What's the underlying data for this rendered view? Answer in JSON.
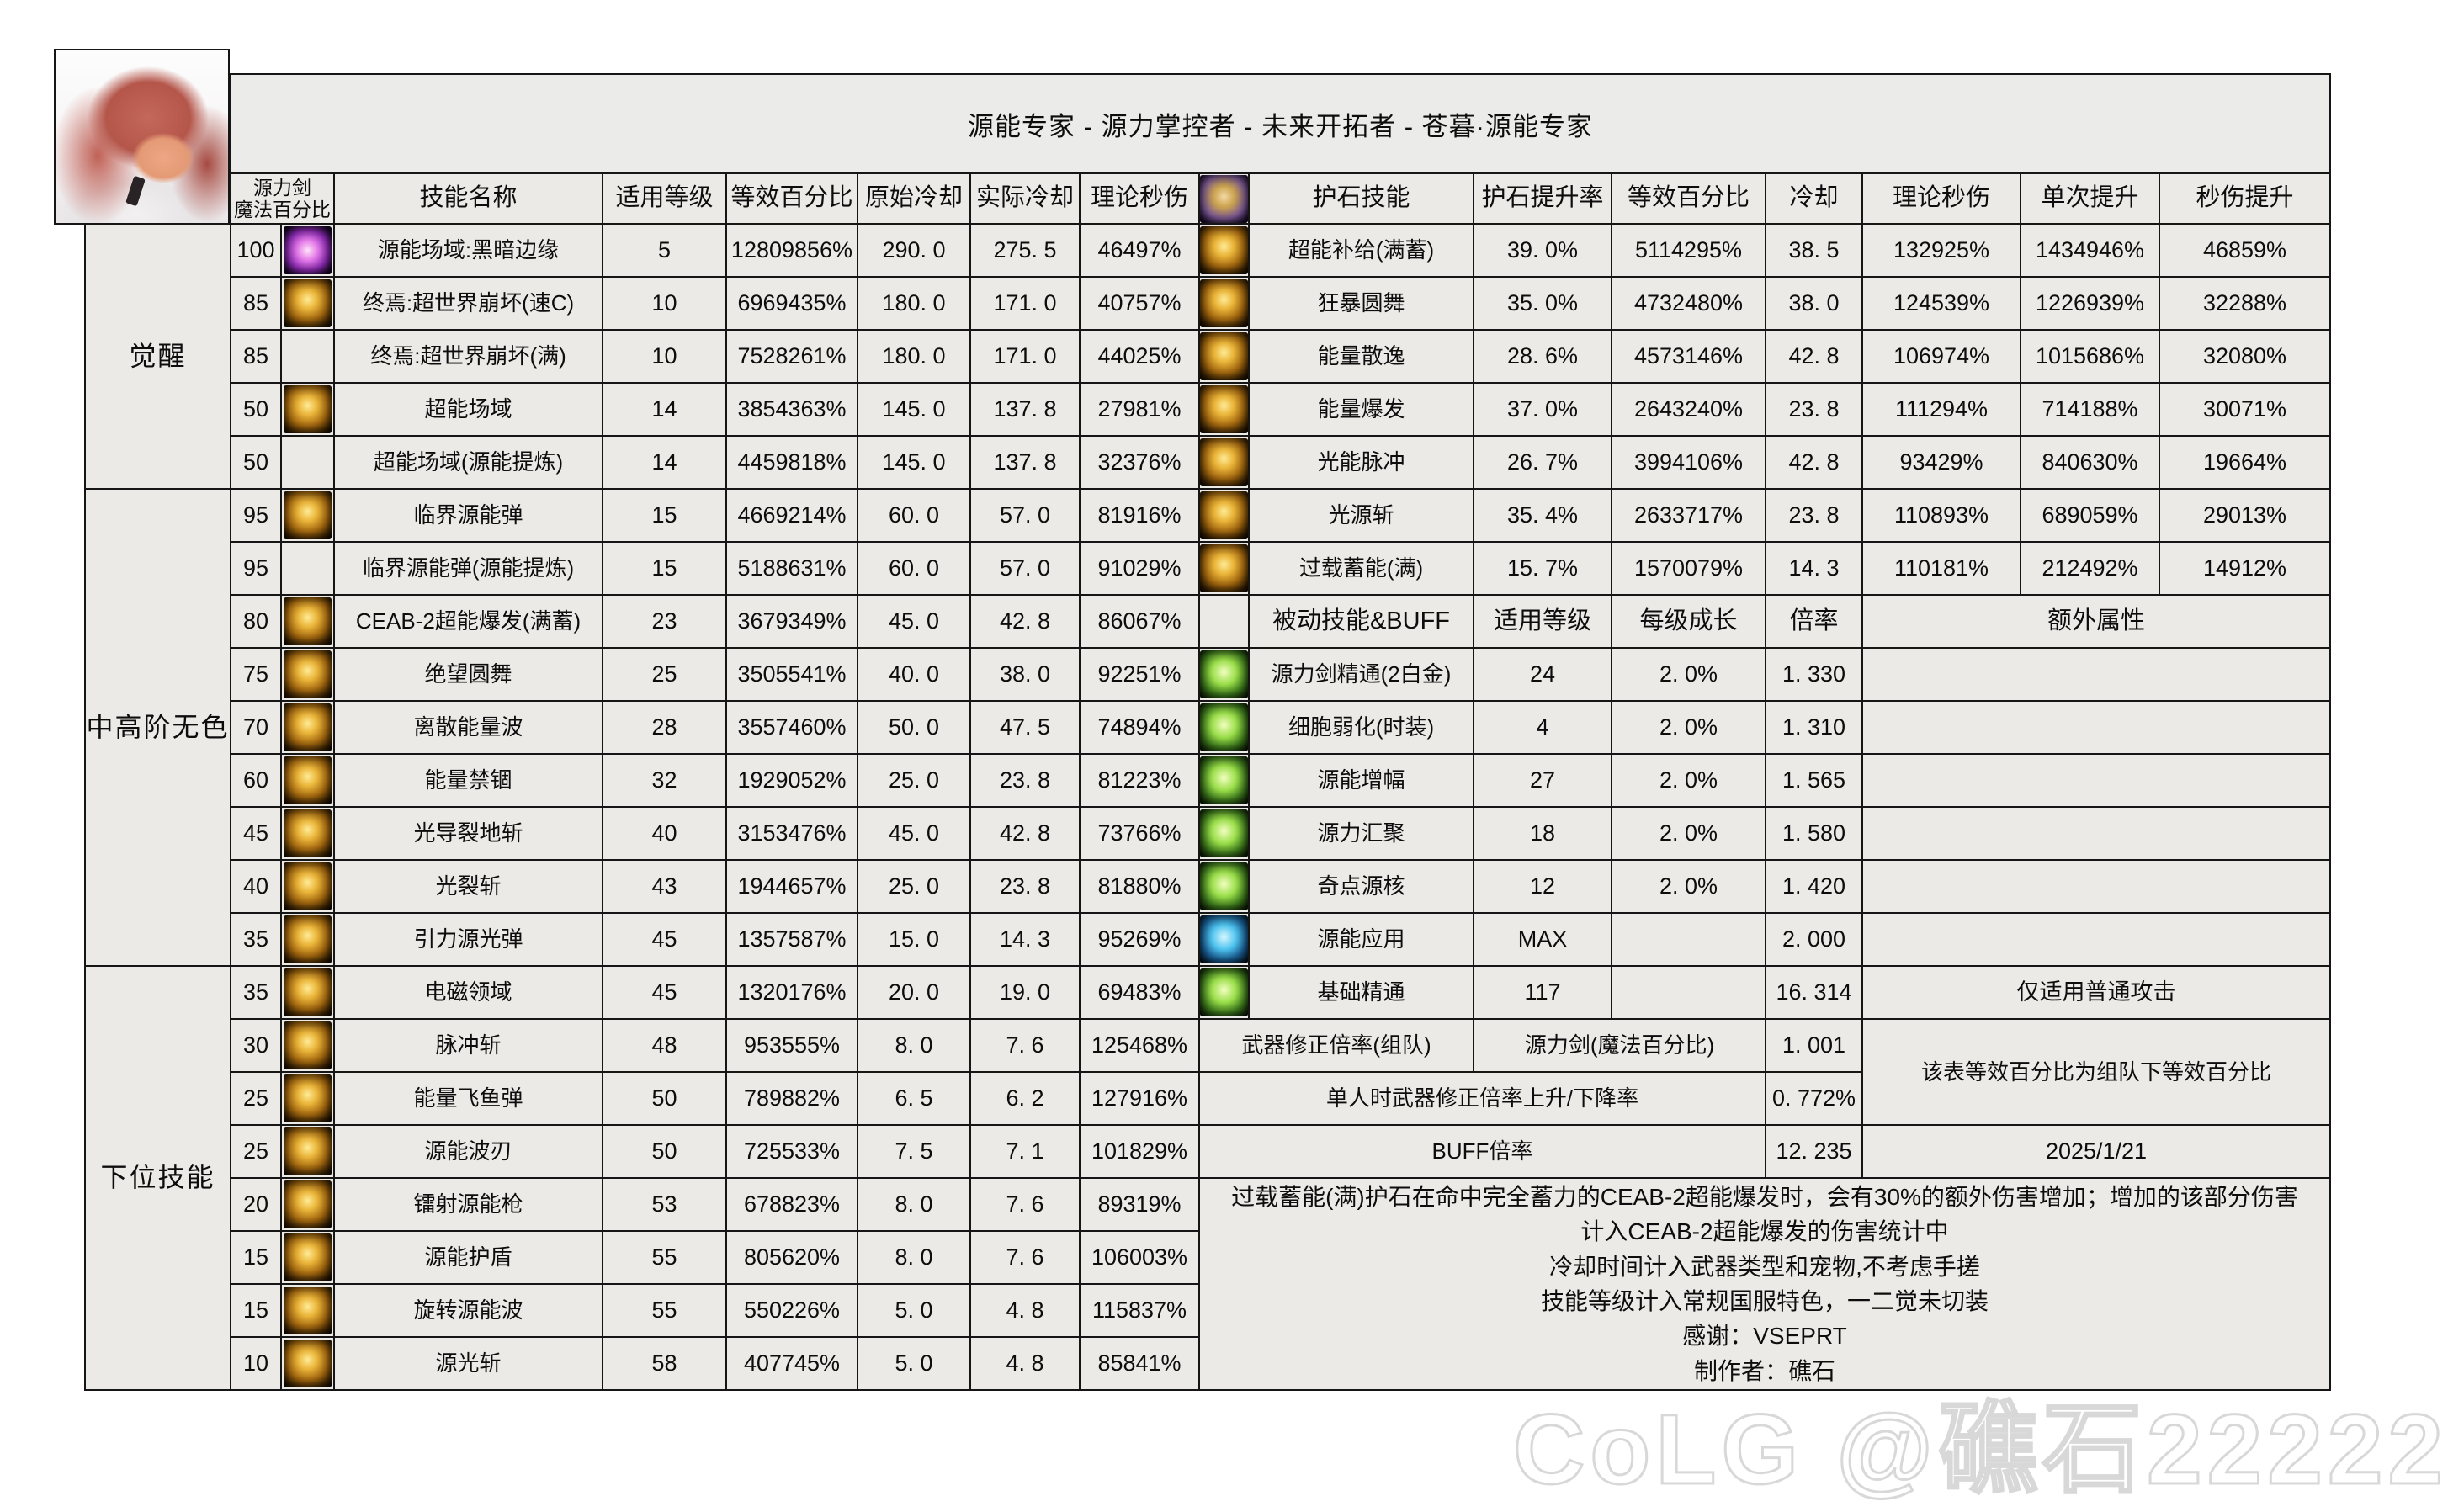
{
  "title": "源能专家 - 源力掌控者 - 未来开拓者 - 苍暮·源能专家",
  "watermark": "CoLG @礁石22222",
  "left_table": {
    "headers": {
      "pct1": "源力剑",
      "pct2": "魔法百分比",
      "name": "技能名称",
      "level": "适用等级",
      "equiv": "等效百分比",
      "cd0": "原始冷却",
      "cd1": "实际冷却",
      "dps": "理论秒伤"
    },
    "groups": [
      {
        "label": "觉醒",
        "span": 5
      },
      {
        "label": "中高阶无色",
        "span": 9
      },
      {
        "label": "下位技能",
        "span": 8
      }
    ],
    "rows": [
      {
        "pct": "100",
        "icon": "purple",
        "name": "源能场域:黑暗边缘",
        "level": "5",
        "equiv": "12809856%",
        "cd0": "290. 0",
        "cd1": "275. 5",
        "dps": "46497%"
      },
      {
        "pct": "85",
        "icon": "gold",
        "name": "终焉:超世界崩坏(速C)",
        "level": "10",
        "equiv": "6969435%",
        "cd0": "180. 0",
        "cd1": "171. 0",
        "dps": "40757%"
      },
      {
        "pct": "85",
        "icon": "none",
        "name": "终焉:超世界崩坏(满)",
        "level": "10",
        "equiv": "7528261%",
        "cd0": "180. 0",
        "cd1": "171. 0",
        "dps": "44025%"
      },
      {
        "pct": "50",
        "icon": "gold",
        "name": "超能场域",
        "level": "14",
        "equiv": "3854363%",
        "cd0": "145. 0",
        "cd1": "137. 8",
        "dps": "27981%"
      },
      {
        "pct": "50",
        "icon": "none",
        "name": "超能场域(源能提炼)",
        "level": "14",
        "equiv": "4459818%",
        "cd0": "145. 0",
        "cd1": "137. 8",
        "dps": "32376%"
      },
      {
        "pct": "95",
        "icon": "gold",
        "name": "临界源能弹",
        "level": "15",
        "equiv": "4669214%",
        "cd0": "60. 0",
        "cd1": "57. 0",
        "dps": "81916%"
      },
      {
        "pct": "95",
        "icon": "none",
        "name": "临界源能弹(源能提炼)",
        "level": "15",
        "equiv": "5188631%",
        "cd0": "60. 0",
        "cd1": "57. 0",
        "dps": "91029%"
      },
      {
        "pct": "80",
        "icon": "gold",
        "name": "CEAB-2超能爆发(满蓄)",
        "level": "23",
        "equiv": "3679349%",
        "cd0": "45. 0",
        "cd1": "42. 8",
        "dps": "86067%"
      },
      {
        "pct": "75",
        "icon": "gold",
        "name": "绝望圆舞",
        "level": "25",
        "equiv": "3505541%",
        "cd0": "40. 0",
        "cd1": "38. 0",
        "dps": "92251%"
      },
      {
        "pct": "70",
        "icon": "gold",
        "name": "离散能量波",
        "level": "28",
        "equiv": "3557460%",
        "cd0": "50. 0",
        "cd1": "47. 5",
        "dps": "74894%"
      },
      {
        "pct": "60",
        "icon": "gold",
        "name": "能量禁锢",
        "level": "32",
        "equiv": "1929052%",
        "cd0": "25. 0",
        "cd1": "23. 8",
        "dps": "81223%"
      },
      {
        "pct": "45",
        "icon": "gold",
        "name": "光导裂地斩",
        "level": "40",
        "equiv": "3153476%",
        "cd0": "45. 0",
        "cd1": "42. 8",
        "dps": "73766%"
      },
      {
        "pct": "40",
        "icon": "gold",
        "name": "光裂斩",
        "level": "43",
        "equiv": "1944657%",
        "cd0": "25. 0",
        "cd1": "23. 8",
        "dps": "81880%"
      },
      {
        "pct": "35",
        "icon": "gold",
        "name": "引力源光弹",
        "level": "45",
        "equiv": "1357587%",
        "cd0": "15. 0",
        "cd1": "14. 3",
        "dps": "95269%"
      },
      {
        "pct": "35",
        "icon": "gold",
        "name": "电磁领域",
        "level": "45",
        "equiv": "1320176%",
        "cd0": "20. 0",
        "cd1": "19. 0",
        "dps": "69483%"
      },
      {
        "pct": "30",
        "icon": "gold",
        "name": "脉冲斩",
        "level": "48",
        "equiv": "953555%",
        "cd0": "8. 0",
        "cd1": "7. 6",
        "dps": "125468%"
      },
      {
        "pct": "25",
        "icon": "gold",
        "name": "能量飞鱼弹",
        "level": "50",
        "equiv": "789882%",
        "cd0": "6. 5",
        "cd1": "6. 2",
        "dps": "127916%"
      },
      {
        "pct": "25",
        "icon": "gold",
        "name": "源能波刃",
        "level": "50",
        "equiv": "725533%",
        "cd0": "7. 5",
        "cd1": "7. 1",
        "dps": "101829%"
      },
      {
        "pct": "20",
        "icon": "gold",
        "name": "镭射源能枪",
        "level": "53",
        "equiv": "678823%",
        "cd0": "8. 0",
        "cd1": "7. 6",
        "dps": "89319%"
      },
      {
        "pct": "15",
        "icon": "gold",
        "name": "源能护盾",
        "level": "55",
        "equiv": "805620%",
        "cd0": "8. 0",
        "cd1": "7. 6",
        "dps": "106003%"
      },
      {
        "pct": "15",
        "icon": "gold",
        "name": "旋转源能波",
        "level": "55",
        "equiv": "550226%",
        "cd0": "5. 0",
        "cd1": "4. 8",
        "dps": "115837%"
      },
      {
        "pct": "10",
        "icon": "gold",
        "name": "源光斩",
        "level": "58",
        "equiv": "407745%",
        "cd0": "5. 0",
        "cd1": "4. 8",
        "dps": "85841%"
      }
    ]
  },
  "right_table": {
    "headers": {
      "name": "护石技能",
      "rate": "护石提升率",
      "equiv": "等效百分比",
      "cd": "冷却",
      "dps": "理论秒伤",
      "single": "单次提升",
      "dpsup": "秒伤提升"
    },
    "gem_rows": [
      {
        "icon": "gold",
        "name": "超能补给(满蓄)",
        "rate": "39. 0%",
        "equiv": "5114295%",
        "cd": "38. 5",
        "dps": "132925%",
        "single": "1434946%",
        "dpsup": "46859%"
      },
      {
        "icon": "gold",
        "name": "狂暴圆舞",
        "rate": "35. 0%",
        "equiv": "4732480%",
        "cd": "38. 0",
        "dps": "124539%",
        "single": "1226939%",
        "dpsup": "32288%"
      },
      {
        "icon": "gold",
        "name": "能量散逸",
        "rate": "28. 6%",
        "equiv": "4573146%",
        "cd": "42. 8",
        "dps": "106974%",
        "single": "1015686%",
        "dpsup": "32080%"
      },
      {
        "icon": "gold",
        "name": "能量爆发",
        "rate": "37. 0%",
        "equiv": "2643240%",
        "cd": "23. 8",
        "dps": "111294%",
        "single": "714188%",
        "dpsup": "30071%"
      },
      {
        "icon": "gold",
        "name": "光能脉冲",
        "rate": "26. 7%",
        "equiv": "3994106%",
        "cd": "42. 8",
        "dps": "93429%",
        "single": "840630%",
        "dpsup": "19664%"
      },
      {
        "icon": "gold",
        "name": "光源斩",
        "rate": "35. 4%",
        "equiv": "2633717%",
        "cd": "23. 8",
        "dps": "110893%",
        "single": "689059%",
        "dpsup": "29013%"
      },
      {
        "icon": "gold",
        "name": "过载蓄能(满)",
        "rate": "15. 7%",
        "equiv": "1570079%",
        "cd": "14. 3",
        "dps": "110181%",
        "single": "212492%",
        "dpsup": "14912%"
      }
    ],
    "passive_headers": {
      "name": "被动技能&BUFF",
      "level": "适用等级",
      "growth": "每级成长",
      "mult": "倍率",
      "extra": "额外属性"
    },
    "passive_rows": [
      {
        "icon": "green",
        "name": "源力剑精通(2白金)",
        "level": "24",
        "growth": "2. 0%",
        "mult": "1. 330",
        "extra": ""
      },
      {
        "icon": "green",
        "name": "细胞弱化(时装)",
        "level": "4",
        "growth": "2. 0%",
        "mult": "1. 310",
        "extra": ""
      },
      {
        "icon": "green",
        "name": "源能增幅",
        "level": "27",
        "growth": "2. 0%",
        "mult": "1. 565",
        "extra": ""
      },
      {
        "icon": "green",
        "name": "源力汇聚",
        "level": "18",
        "growth": "2. 0%",
        "mult": "1. 580",
        "extra": ""
      },
      {
        "icon": "green",
        "name": "奇点源核",
        "level": "12",
        "growth": "2. 0%",
        "mult": "1. 420",
        "extra": ""
      },
      {
        "icon": "blue",
        "name": "源能应用",
        "level": "MAX",
        "growth": "",
        "mult": "2. 000",
        "extra": ""
      },
      {
        "icon": "green",
        "name": "基础精通",
        "level": "117",
        "growth": "",
        "mult": "16. 314",
        "extra": "仅适用普通攻击"
      }
    ],
    "weapon": {
      "r1name": "武器修正倍率(组队)",
      "r1mid": "源力剑(魔法百分比)",
      "r1val": "1. 001",
      "r2name": "单人时武器修正倍率上升/下降率",
      "r2val": "0. 772%",
      "r3name": "BUFF倍率",
      "r3val": "12. 235",
      "side_note": "该表等效百分比为组队下等效百分比",
      "date": "2025/1/21"
    },
    "notes": [
      "过载蓄能(满)护石在命中完全蓄力的CEAB-2超能爆发时，会有30%的额外伤害增加；增加的该部分伤害",
      "计入CEAB-2超能爆发的伤害统计中",
      "冷却时间计入武器类型和宠物,不考虑手搓",
      "技能等级计入常规国服特色，一二觉未切装",
      "感谢：VSEPRT",
      "制作者：礁石"
    ]
  }
}
